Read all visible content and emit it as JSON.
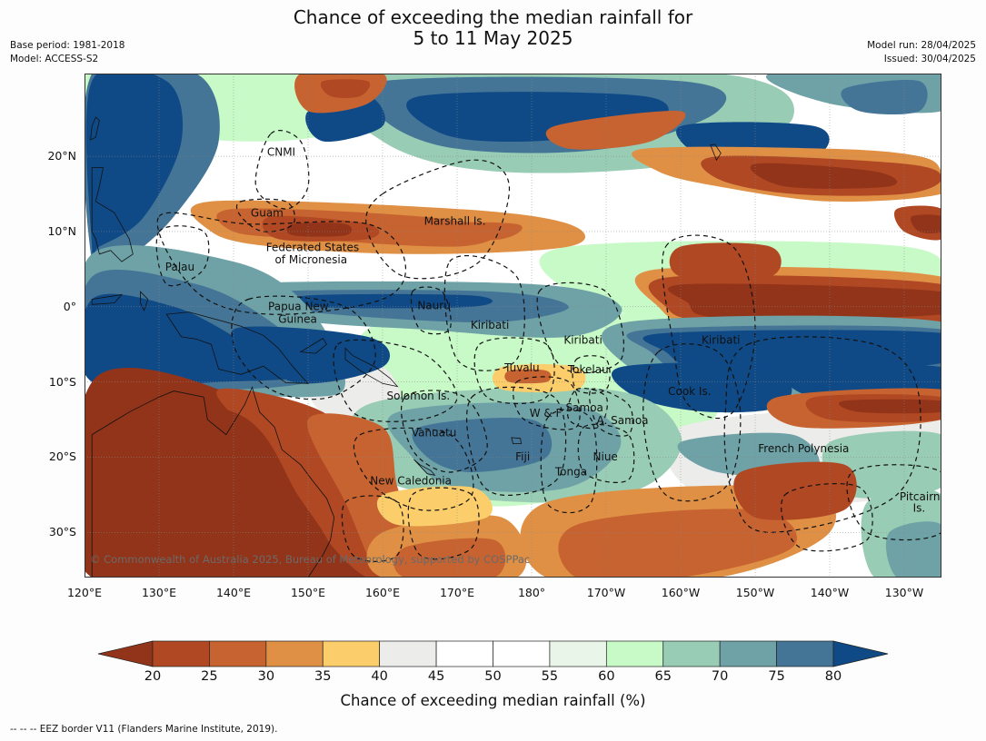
{
  "header": {
    "title_line1": "Chance of exceeding the median rainfall for",
    "title_line2": "5 to 11 May 2025",
    "base_period": "Base period: 1981-2018",
    "model": "Model: ACCESS-S2",
    "model_run": "Model run: 28/04/2025",
    "issued": "Issued: 30/04/2025"
  },
  "map": {
    "lon_range": [
      120,
      235
    ],
    "lat_range": [
      -36,
      31
    ],
    "y_ticks": [
      {
        "lat": 20,
        "label": "20°N"
      },
      {
        "lat": 10,
        "label": "10°N"
      },
      {
        "lat": 0,
        "label": "0°"
      },
      {
        "lat": -10,
        "label": "10°S"
      },
      {
        "lat": -20,
        "label": "20°S"
      },
      {
        "lat": -30,
        "label": "30°S"
      }
    ],
    "x_ticks": [
      {
        "lon": 120,
        "label": "120°E"
      },
      {
        "lon": 130,
        "label": "130°E"
      },
      {
        "lon": 140,
        "label": "140°E"
      },
      {
        "lon": 150,
        "label": "150°E"
      },
      {
        "lon": 160,
        "label": "160°E"
      },
      {
        "lon": 170,
        "label": "170°E"
      },
      {
        "lon": 180,
        "label": "180°"
      },
      {
        "lon": 190,
        "label": "170°W"
      },
      {
        "lon": 200,
        "label": "160°W"
      },
      {
        "lon": 210,
        "label": "150°W"
      },
      {
        "lon": 220,
        "label": "140°W"
      },
      {
        "lon": 230,
        "label": "130°W"
      }
    ],
    "regions": [
      {
        "name": "CNMI",
        "lon": 146.4,
        "lat": 20.5
      },
      {
        "name": "Guam",
        "lon": 144.5,
        "lat": 12.4
      },
      {
        "name": "Marshall Is.",
        "lon": 169.7,
        "lat": 11.3
      },
      {
        "name": "Federated States",
        "lon": 150.6,
        "lat": 7.8
      },
      {
        "name": "of Micronesia",
        "lon": 150.4,
        "lat": 6.2
      },
      {
        "name": "Palau",
        "lon": 132.8,
        "lat": 5.2
      },
      {
        "name": "Papua New",
        "lon": 148.7,
        "lat": 0.0
      },
      {
        "name": "Guinea",
        "lon": 148.6,
        "lat": -1.7
      },
      {
        "name": "Nauru",
        "lon": 166.9,
        "lat": 0.1
      },
      {
        "name": "Kiribati",
        "lon": 174.4,
        "lat": -2.5
      },
      {
        "name": "Kiribati",
        "lon": 186.9,
        "lat": -4.5
      },
      {
        "name": "Kiribati",
        "lon": 205.4,
        "lat": -4.5
      },
      {
        "name": "Tuvalu",
        "lon": 178.7,
        "lat": -8.2
      },
      {
        "name": "Tokelau",
        "lon": 187.6,
        "lat": -8.4
      },
      {
        "name": "Cook Is.",
        "lon": 201.2,
        "lat": -11.3
      },
      {
        "name": "Solomon Is.",
        "lon": 164.8,
        "lat": -11.9
      },
      {
        "name": "Samoa",
        "lon": 187.1,
        "lat": -13.5
      },
      {
        "name": "W & F",
        "lon": 181.9,
        "lat": -14.2
      },
      {
        "name": "A. Samoa",
        "lon": 192.2,
        "lat": -15.2
      },
      {
        "name": "Vanuatu",
        "lon": 166.9,
        "lat": -16.8
      },
      {
        "name": "French Polynesia",
        "lon": 216.5,
        "lat": -18.9
      },
      {
        "name": "Fiji",
        "lon": 178.8,
        "lat": -20.0
      },
      {
        "name": "Niue",
        "lon": 189.9,
        "lat": -20.0
      },
      {
        "name": "Tonga",
        "lon": 185.3,
        "lat": -22.0
      },
      {
        "name": "New Caledonia",
        "lon": 163.8,
        "lat": -23.2
      },
      {
        "name": "Pitcairn",
        "lon": 232.1,
        "lat": -25.3
      },
      {
        "name": "Is.",
        "lon": 232.0,
        "lat": -26.8
      }
    ],
    "copyright": "© Commonwealth of Australia 2025, Bureau of Meteorology, supported by COSPPac"
  },
  "colorbar": {
    "ticks": [
      "20",
      "25",
      "30",
      "35",
      "40",
      "45",
      "50",
      "55",
      "60",
      "65",
      "70",
      "75",
      "80"
    ],
    "colors": [
      "#923419",
      "#b04823",
      "#c76330",
      "#df9045",
      "#fbcd6b",
      "#ececea",
      "#ffffff",
      "#ffffff",
      "#e8f5e8",
      "#c8fac8",
      "#99ccb4",
      "#6ea2a6",
      "#447596",
      "#0f4a87"
    ],
    "title": "Chance of exceeding median rainfall (%)"
  },
  "footer": "--  --  -- EEZ border V11 (Flanders Marine Institute, 2019)."
}
